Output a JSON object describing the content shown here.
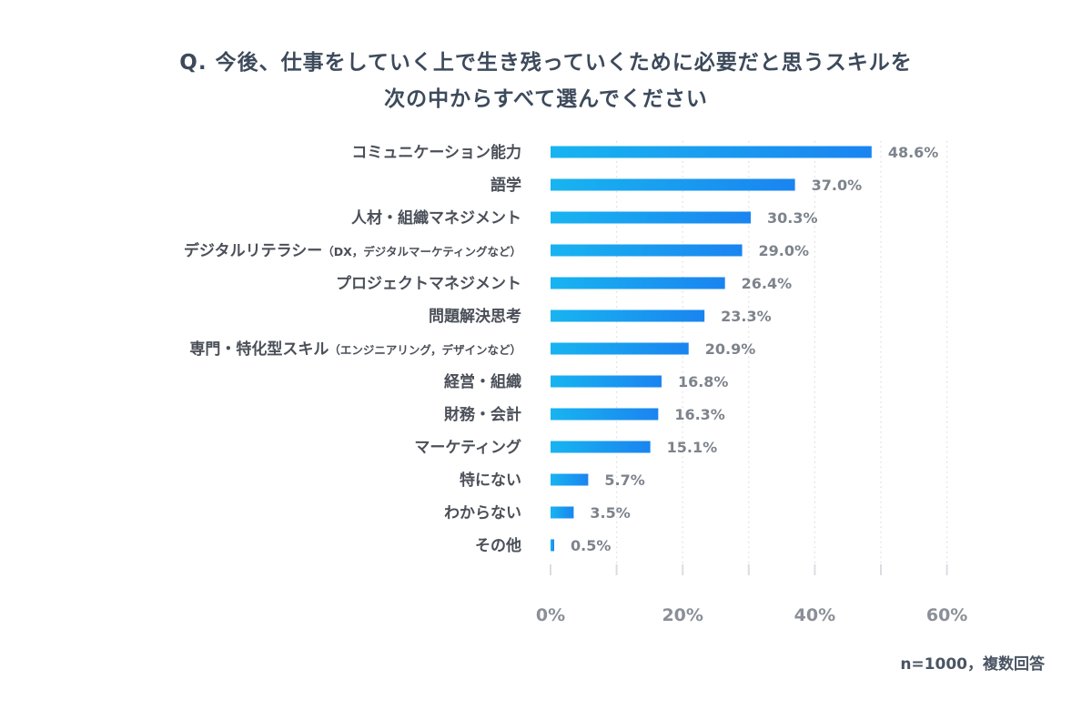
{
  "title_lines": [
    "Q. 今後、仕事をしていく上で生き残っていくために必要だと思うスキルを",
    "次の中からすべて選んでください"
  ],
  "footnote": "n=1000，複数回答",
  "colors": {
    "bar_start": "#18b4f0",
    "bar_end": "#1a84f0",
    "label_text": "#4a4f58",
    "value_text": "#7d838c",
    "axis_text": "#8a8f98",
    "grid": "#d9dde2"
  },
  "chart_data": {
    "type": "bar",
    "orientation": "horizontal",
    "categories": [
      "コミュニケーション能力",
      "語学",
      "人材・組織マネジメント",
      "デジタルリテラシー（DX，デジタルマーケティングなど）",
      "プロジェクトマネジメント",
      "問題解決思考",
      "専門・特化型スキル（エンジニアリング，デザインなど）",
      "経営・組織",
      "財務・会計",
      "マーケティング",
      "特にない",
      "わからない",
      "その他"
    ],
    "values": [
      48.6,
      37.0,
      30.3,
      29.0,
      26.4,
      23.3,
      20.9,
      16.8,
      16.3,
      15.1,
      5.7,
      3.5,
      0.5
    ],
    "value_labels": [
      "48.6%",
      "37.0%",
      "30.3%",
      "29.0%",
      "26.4%",
      "23.3%",
      "20.9%",
      "16.8%",
      "16.3%",
      "15.1%",
      "5.7%",
      "3.5%",
      "0.5%"
    ],
    "x_ticks": [
      0,
      20,
      40,
      60
    ],
    "x_tick_labels": [
      "0%",
      "20%",
      "40%",
      "60%"
    ],
    "xlim": [
      0,
      60
    ],
    "grid": true
  }
}
